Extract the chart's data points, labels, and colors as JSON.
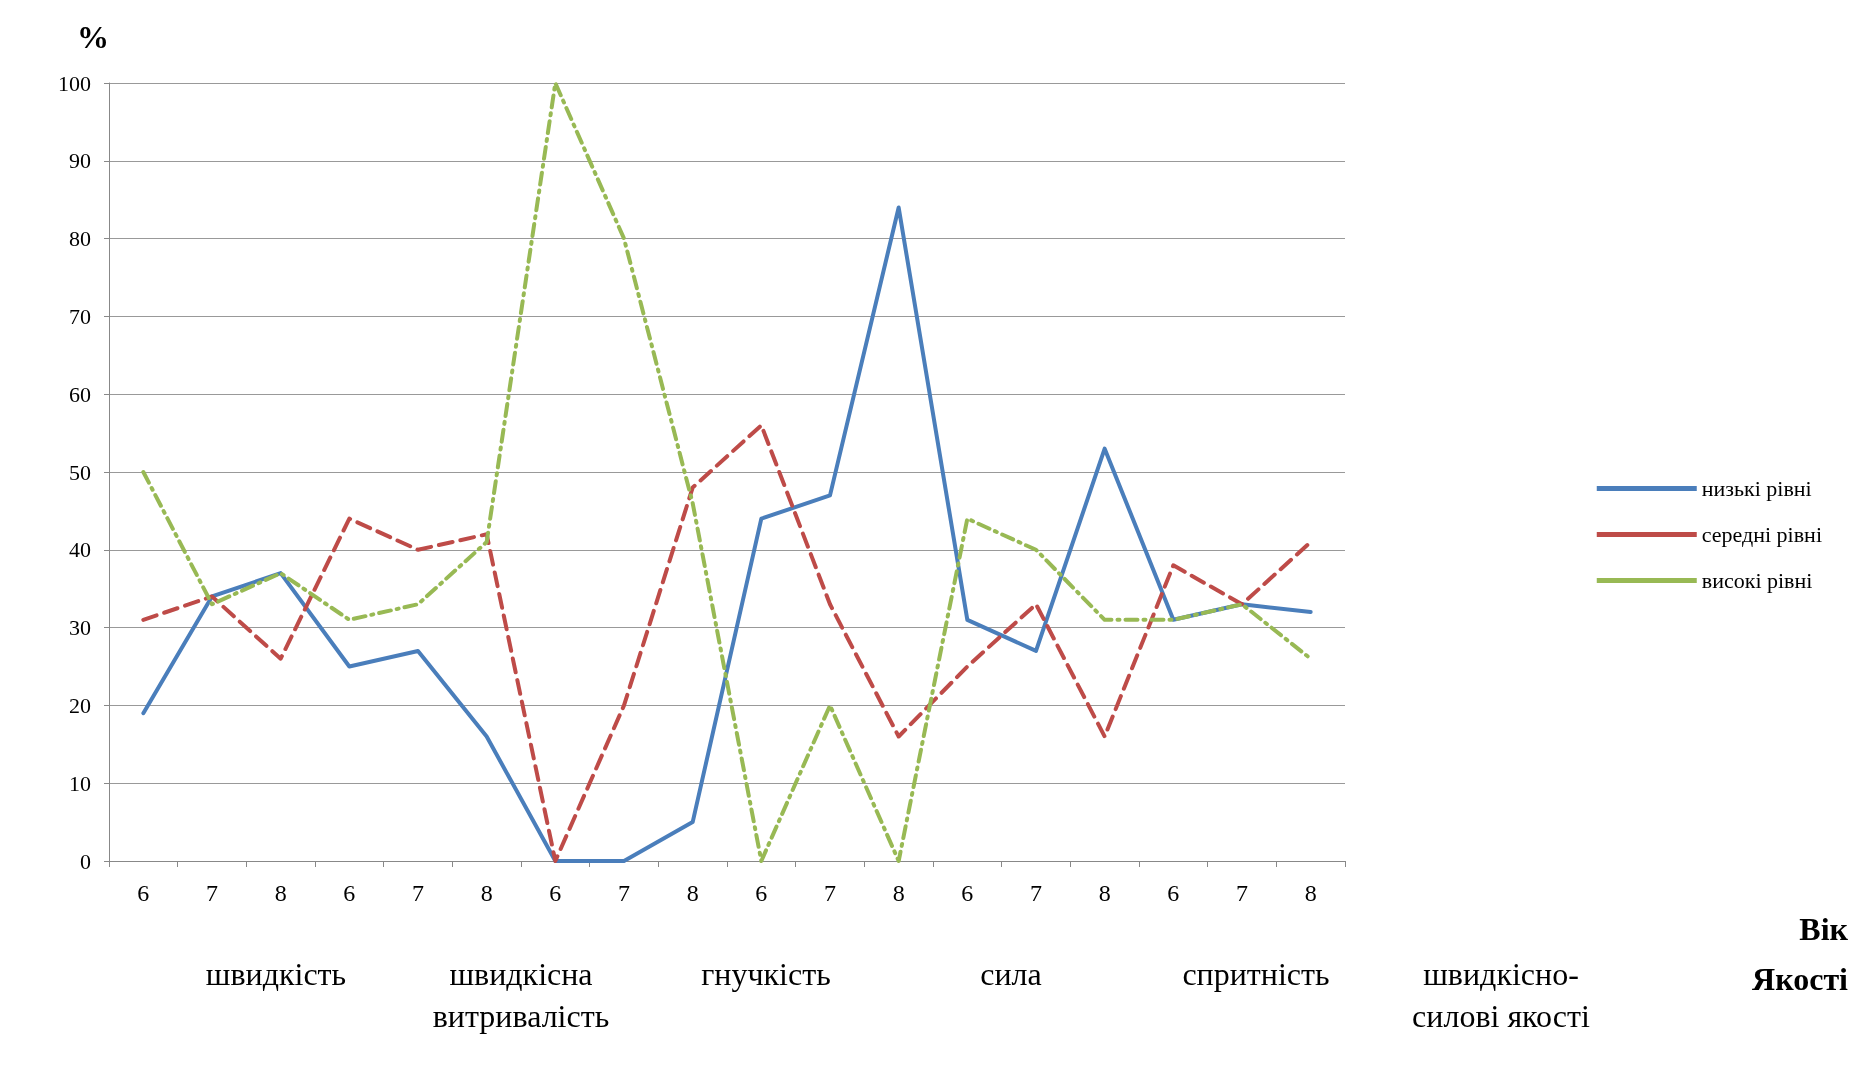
{
  "chart_data": {
    "type": "line",
    "ylabel": "%",
    "categories": [
      "6",
      "7",
      "8",
      "6",
      "7",
      "8",
      "6",
      "7",
      "8",
      "6",
      "7",
      "8",
      "6",
      "7",
      "8",
      "6",
      "7",
      "8"
    ],
    "series": [
      {
        "name": "низькі рівні",
        "color": "#4a7ebb",
        "line_style": "solid",
        "values": [
          19,
          34,
          37,
          25,
          27,
          16,
          0,
          0,
          5,
          44,
          47,
          84,
          31,
          27,
          53,
          31,
          33,
          32
        ]
      },
      {
        "name": "середні рівні",
        "color": "#be4b48",
        "line_style": "dashed",
        "values": [
          31,
          34,
          26,
          44,
          40,
          42,
          0,
          20,
          48,
          56,
          33,
          16,
          25,
          33,
          16,
          38,
          33,
          41
        ]
      },
      {
        "name": "високі рівні",
        "color": "#98b954",
        "line_style": "dotted",
        "values": [
          50,
          33,
          37,
          31,
          33,
          41,
          100,
          80,
          46,
          0,
          20,
          0,
          44,
          40,
          31,
          31,
          33,
          26
        ]
      }
    ],
    "ylim": [
      0,
      100
    ],
    "yticks": [
      0,
      10,
      20,
      30,
      40,
      50,
      60,
      70,
      80,
      90,
      100
    ],
    "grid": "y",
    "legend": "right",
    "marker": "none",
    "annotations": [
      "швидкість",
      "швидкісна\nвитривалість",
      "гнучкість",
      "сила",
      "спритність",
      "швидкісно-\nсилові якості",
      "Вік",
      "Якості"
    ]
  }
}
